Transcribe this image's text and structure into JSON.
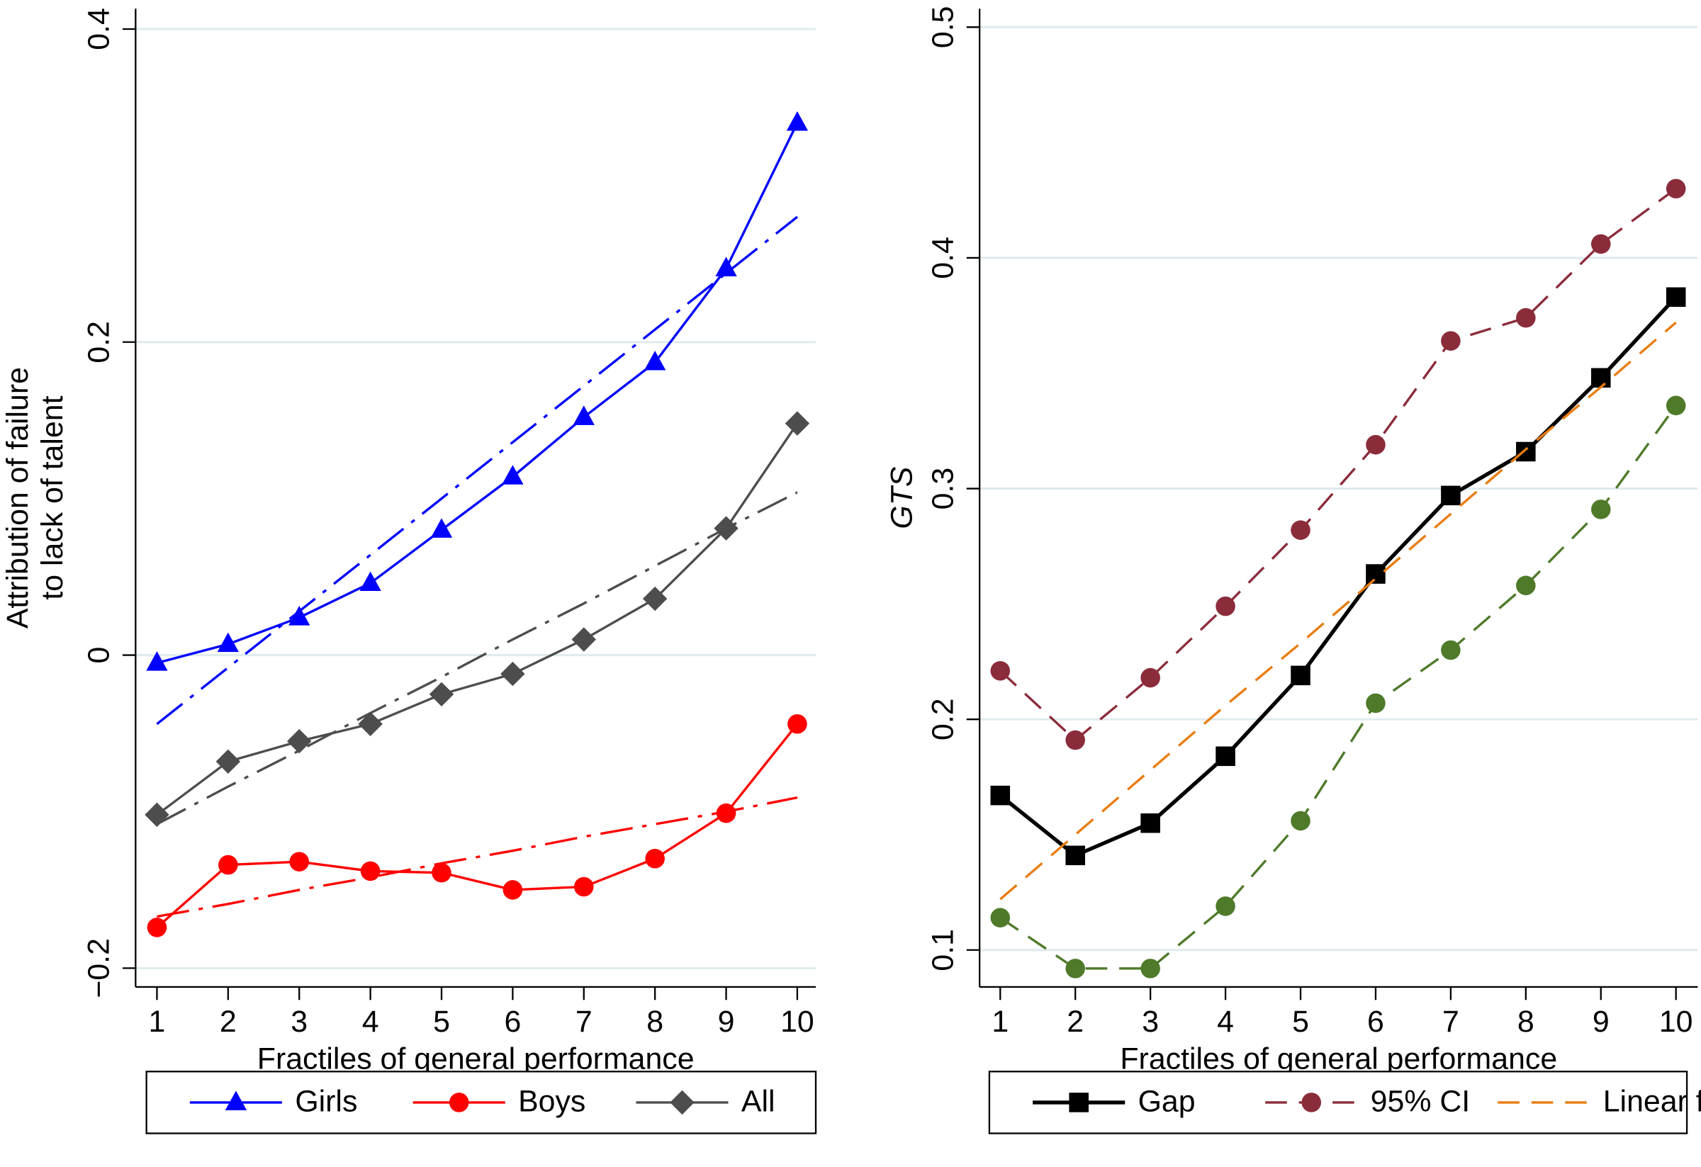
{
  "chart_data": [
    {
      "type": "line",
      "xlabel": "Fractiles of general performance",
      "ylabel": [
        "Attribution of failure",
        "to lack of talent"
      ],
      "x": [
        1,
        2,
        3,
        4,
        5,
        6,
        7,
        8,
        9,
        10
      ],
      "xlim": [
        0.7,
        10.26
      ],
      "xticks": [
        1,
        2,
        3,
        4,
        5,
        6,
        7,
        8,
        9,
        10
      ],
      "ylim": [
        -0.212,
        0.413
      ],
      "yticks": [
        {
          "value": -0.2,
          "label": "−0.2"
        },
        0,
        0.2,
        0.4
      ],
      "grid": true,
      "series": [
        {
          "name": "Girls",
          "color": "#0000ff",
          "marker": "triangle",
          "dash": "solid",
          "values": [
            -0.005,
            0.007,
            0.024,
            0.046,
            0.08,
            0.114,
            0.152,
            0.187,
            0.247,
            0.34
          ],
          "fit_dash": "dashdot",
          "fit_values": [
            -0.044,
            -0.008,
            0.028,
            0.064,
            0.1,
            0.136,
            0.172,
            0.208,
            0.244,
            0.28
          ]
        },
        {
          "name": "Boys",
          "color": "#ff0000",
          "marker": "circle",
          "dash": "solid",
          "values": [
            -0.174,
            -0.134,
            -0.132,
            -0.138,
            -0.139,
            -0.15,
            -0.148,
            -0.13,
            -0.101,
            -0.044
          ],
          "fit_dash": "dashdot",
          "fit_values": [
            -0.167,
            -0.159,
            -0.15,
            -0.142,
            -0.133,
            -0.125,
            -0.116,
            -0.108,
            -0.1,
            -0.091
          ]
        },
        {
          "name": "All",
          "color": "#4d4d4d",
          "marker": "diamond",
          "dash": "solid",
          "values": [
            -0.102,
            -0.068,
            -0.055,
            -0.044,
            -0.025,
            -0.012,
            0.01,
            0.036,
            0.081,
            0.148
          ],
          "fit_dash": "dashdot",
          "fit_values": [
            -0.108,
            -0.084,
            -0.061,
            -0.037,
            -0.014,
            0.01,
            0.033,
            0.057,
            0.081,
            0.104
          ]
        }
      ]
    },
    {
      "type": "line",
      "xlabel": "Fractiles of general performance",
      "ylabel": "GTS",
      "ylabel_style": "italic",
      "x": [
        1,
        2,
        3,
        4,
        5,
        6,
        7,
        8,
        9,
        10
      ],
      "xlim": [
        0.725,
        10.29
      ],
      "xticks": [
        1,
        2,
        3,
        4,
        5,
        6,
        7,
        8,
        9,
        10
      ],
      "ylim": [
        0.084,
        0.508
      ],
      "yticks": [
        0.1,
        0.2,
        0.3,
        0.4,
        0.5
      ],
      "grid": true,
      "series": [
        {
          "name": "Gap",
          "color": "#000000",
          "marker": "square",
          "dash": "solid",
          "values": [
            0.167,
            0.141,
            0.155,
            0.184,
            0.219,
            0.263,
            0.297,
            0.316,
            0.348,
            0.383
          ]
        },
        {
          "name": "95% CI",
          "color": "#8b2c3b",
          "marker": "circle",
          "dash": "dashed",
          "values": [
            0.221,
            0.191,
            0.218,
            0.249,
            0.282,
            0.319,
            0.364,
            0.374,
            0.406,
            0.43
          ],
          "lower_color": "#4e7a2a",
          "lower_values": [
            0.114,
            0.092,
            0.092,
            0.119,
            0.156,
            0.207,
            0.23,
            0.258,
            0.291,
            0.336
          ]
        },
        {
          "name": "Linear fit",
          "color": "#e87d10",
          "marker": "none",
          "dash": "dashed",
          "values": [
            0.122,
            0.15,
            0.178,
            0.206,
            0.233,
            0.261,
            0.289,
            0.317,
            0.344,
            0.372
          ]
        }
      ]
    }
  ]
}
